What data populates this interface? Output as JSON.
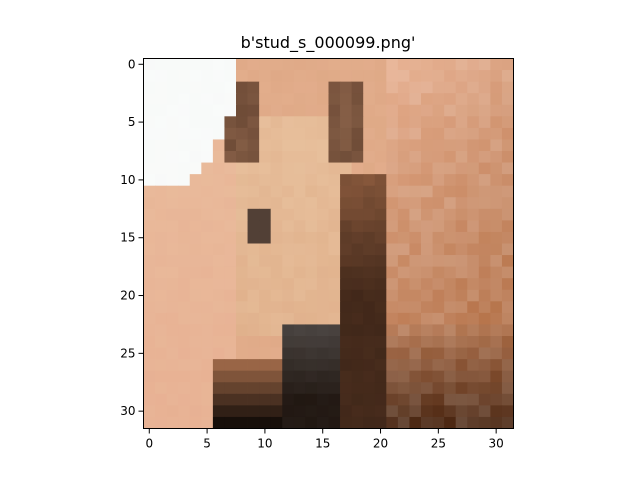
{
  "figure": {
    "title": "b'stud_s_000099.png'",
    "background": "#ffffff"
  },
  "image": {
    "grid_size": [
      32,
      32
    ],
    "content": "pixelated low-resolution photo of a horse head (close-up, light tan face with dark eyes and dark muzzle, brown mane/body on the right, pale sky at top-left)",
    "palette": {
      "sky": "#f6f8f7",
      "face_light": "#ecc9a6",
      "face_mid": "#d9a27c",
      "skin_pink": "#e8b496",
      "neck_brown": "#b87a54",
      "mane_dark": "#3b2316",
      "eye_dark": "#5a3b2a",
      "muzzle_gray": "#4a4441",
      "shadow_black": "#1c120c"
    }
  },
  "axes": {
    "x_ticks": [
      0,
      5,
      10,
      15,
      20,
      25,
      30
    ],
    "y_ticks": [
      0,
      5,
      10,
      15,
      20,
      25,
      30
    ],
    "x_range": [
      -0.5,
      31.5
    ],
    "y_range": [
      31.5,
      -0.5
    ]
  }
}
